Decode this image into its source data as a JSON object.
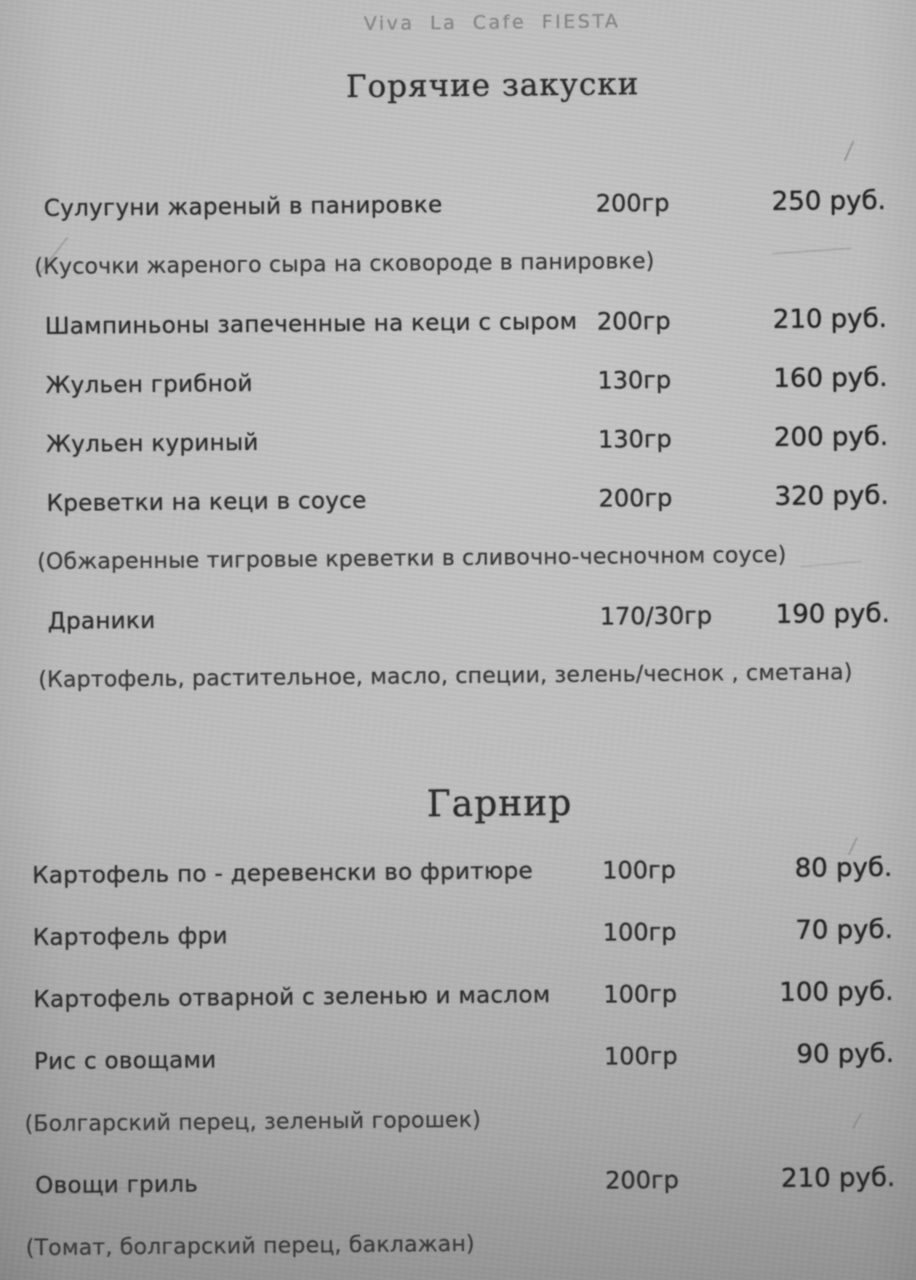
{
  "colors": {
    "paper": "#c6c6c6",
    "ink": "#2e2e2e",
    "faded-ink": "#868686"
  },
  "brand": "Viva La Cafe FIESTA",
  "sections": [
    {
      "title": "Горячие закуски",
      "items": [
        {
          "name": "Сулугуни жареный в панировке",
          "weight": "200гр",
          "price": "250 руб.",
          "description": "(Кусочки жареного сыра на сковороде в панировке)"
        },
        {
          "name": "Шампиньоны запеченные на кеци с сыром",
          "weight": "200гр",
          "price": "210 руб."
        },
        {
          "name": "Жульен грибной",
          "weight": "130гр",
          "price": "160 руб."
        },
        {
          "name": "Жульен куриный",
          "weight": "130гр",
          "price": "200 руб."
        },
        {
          "name": "Креветки на кеци в соусе",
          "weight": "200гр",
          "price": "320 руб.",
          "description": "(Обжаренные тигровые креветки в сливочно-чесночном соусе)"
        },
        {
          "name": "Драники",
          "weight": "170/30гр",
          "price": "190 руб.",
          "description": "(Картофель, растительное, масло, специи, зелень/чеснок , сметана)"
        }
      ]
    },
    {
      "title": "Гарнир",
      "items": [
        {
          "name": "Картофель по - деревенски  во фритюре",
          "weight": "100гр",
          "price": "80 руб."
        },
        {
          "name": "Картофель фри",
          "weight": "100гр",
          "price": "70 руб."
        },
        {
          "name": "Картофель отварной с зеленью и маслом",
          "weight": "100гр",
          "price": "100 руб."
        },
        {
          "name": "Рис с овощами",
          "weight": "100гр",
          "price": "90 руб.",
          "description": "(Болгарский перец, зеленый горошек)"
        },
        {
          "name": "Овощи гриль",
          "weight": "200гр",
          "price": "210 руб.",
          "description": "(Томат, болгарский перец, баклажан)"
        }
      ]
    }
  ]
}
